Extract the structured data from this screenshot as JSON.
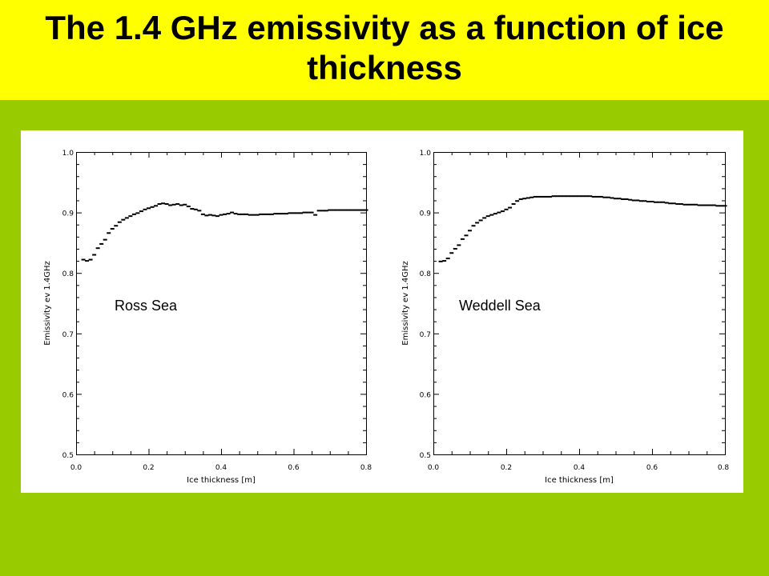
{
  "slide": {
    "title": "The 1.4 GHz emissivity as a function of ice thickness",
    "colors": {
      "background": "#99cc00",
      "title_band": "#ffff00",
      "plot_background": "#ffffff"
    }
  },
  "chart_data": [
    {
      "type": "scatter",
      "title": "",
      "annotation": "Ross Sea",
      "xlabel": "Ice thickness [m]",
      "ylabel": "Emissivity ev 1.4GHz",
      "xlim": [
        0.0,
        0.8
      ],
      "ylim": [
        0.5,
        1.0
      ],
      "xticks": [
        "0.0",
        "0.2",
        "0.4",
        "0.6",
        "0.8"
      ],
      "yticks": [
        "0.5",
        "0.6",
        "0.7",
        "0.8",
        "0.9",
        "1.0"
      ],
      "grid": false,
      "x": [
        0.02,
        0.03,
        0.04,
        0.05,
        0.06,
        0.07,
        0.08,
        0.09,
        0.1,
        0.11,
        0.12,
        0.13,
        0.14,
        0.15,
        0.16,
        0.17,
        0.18,
        0.19,
        0.2,
        0.21,
        0.22,
        0.23,
        0.24,
        0.25,
        0.26,
        0.27,
        0.28,
        0.29,
        0.3,
        0.31,
        0.32,
        0.33,
        0.34,
        0.35,
        0.36,
        0.37,
        0.38,
        0.39,
        0.4,
        0.41,
        0.42,
        0.43,
        0.44,
        0.45,
        0.46,
        0.47,
        0.48,
        0.49,
        0.5,
        0.51,
        0.52,
        0.53,
        0.54,
        0.55,
        0.56,
        0.57,
        0.58,
        0.59,
        0.6,
        0.61,
        0.62,
        0.63,
        0.64,
        0.65,
        0.66,
        0.67,
        0.68,
        0.69,
        0.7,
        0.71,
        0.72,
        0.73,
        0.74,
        0.75,
        0.76,
        0.77,
        0.78,
        0.79,
        0.8
      ],
      "y": [
        0.822,
        0.82,
        0.822,
        0.83,
        0.841,
        0.848,
        0.855,
        0.866,
        0.873,
        0.878,
        0.884,
        0.888,
        0.891,
        0.894,
        0.897,
        0.899,
        0.902,
        0.905,
        0.907,
        0.909,
        0.911,
        0.914,
        0.915,
        0.914,
        0.912,
        0.913,
        0.914,
        0.912,
        0.913,
        0.91,
        0.906,
        0.905,
        0.903,
        0.897,
        0.895,
        0.896,
        0.895,
        0.894,
        0.896,
        0.897,
        0.898,
        0.9,
        0.898,
        0.897,
        0.897,
        0.897,
        0.896,
        0.896,
        0.896,
        0.897,
        0.897,
        0.897,
        0.897,
        0.898,
        0.898,
        0.898,
        0.898,
        0.899,
        0.899,
        0.899,
        0.899,
        0.9,
        0.9,
        0.9,
        0.896,
        0.903,
        0.903,
        0.903,
        0.904,
        0.904,
        0.904,
        0.904,
        0.904,
        0.904,
        0.904,
        0.904,
        0.904,
        0.904,
        0.904
      ]
    },
    {
      "type": "scatter",
      "title": "",
      "annotation": "Weddell Sea",
      "xlabel": "Ice thickness [m]",
      "ylabel": "Emissivity ev 1.4GHz",
      "xlim": [
        0.0,
        0.8
      ],
      "ylim": [
        0.5,
        1.0
      ],
      "xticks": [
        "0.0",
        "0.2",
        "0.4",
        "0.6",
        "0.8"
      ],
      "yticks": [
        "0.5",
        "0.6",
        "0.7",
        "0.8",
        "0.9",
        "1.0"
      ],
      "grid": false,
      "x": [
        0.02,
        0.03,
        0.04,
        0.05,
        0.06,
        0.07,
        0.08,
        0.09,
        0.1,
        0.11,
        0.12,
        0.13,
        0.14,
        0.15,
        0.16,
        0.17,
        0.18,
        0.19,
        0.2,
        0.21,
        0.22,
        0.23,
        0.24,
        0.25,
        0.26,
        0.27,
        0.28,
        0.29,
        0.3,
        0.31,
        0.32,
        0.33,
        0.34,
        0.35,
        0.36,
        0.37,
        0.38,
        0.39,
        0.4,
        0.41,
        0.42,
        0.43,
        0.44,
        0.45,
        0.46,
        0.47,
        0.48,
        0.49,
        0.5,
        0.51,
        0.52,
        0.53,
        0.54,
        0.55,
        0.56,
        0.57,
        0.58,
        0.59,
        0.6,
        0.61,
        0.62,
        0.63,
        0.64,
        0.65,
        0.66,
        0.67,
        0.68,
        0.69,
        0.7,
        0.71,
        0.72,
        0.73,
        0.74,
        0.75,
        0.76,
        0.77,
        0.78,
        0.79,
        0.8
      ],
      "y": [
        0.819,
        0.82,
        0.824,
        0.833,
        0.84,
        0.846,
        0.856,
        0.862,
        0.87,
        0.878,
        0.883,
        0.887,
        0.891,
        0.894,
        0.896,
        0.898,
        0.9,
        0.902,
        0.905,
        0.908,
        0.914,
        0.919,
        0.922,
        0.923,
        0.924,
        0.925,
        0.926,
        0.926,
        0.926,
        0.926,
        0.926,
        0.927,
        0.927,
        0.927,
        0.927,
        0.927,
        0.927,
        0.927,
        0.927,
        0.927,
        0.927,
        0.927,
        0.926,
        0.926,
        0.926,
        0.925,
        0.925,
        0.924,
        0.923,
        0.923,
        0.922,
        0.922,
        0.921,
        0.92,
        0.92,
        0.919,
        0.919,
        0.918,
        0.918,
        0.917,
        0.917,
        0.917,
        0.916,
        0.915,
        0.915,
        0.914,
        0.914,
        0.913,
        0.913,
        0.913,
        0.913,
        0.912,
        0.912,
        0.912,
        0.912,
        0.912,
        0.911,
        0.911,
        0.911
      ]
    }
  ]
}
